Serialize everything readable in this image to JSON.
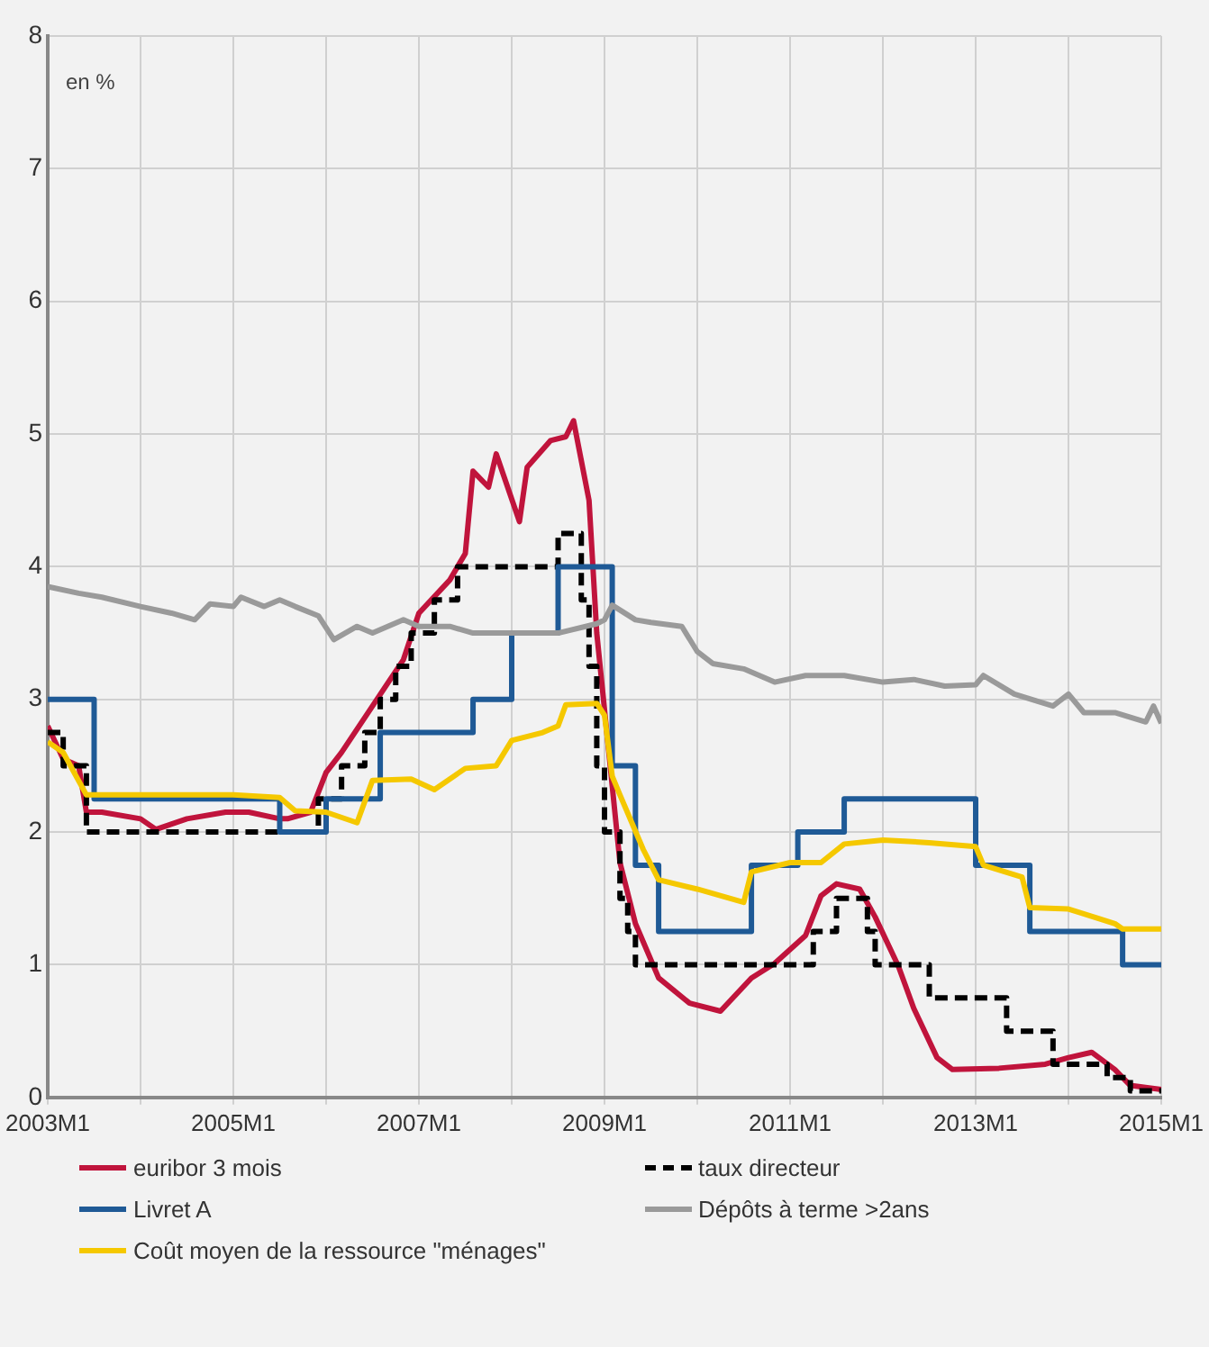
{
  "chart_data": {
    "type": "line",
    "annotations": [
      "en %"
    ],
    "xlim": [
      "2003-01",
      "2015-01"
    ],
    "xticks": [
      {
        "value": "2003-01",
        "label": "2003M1"
      },
      {
        "value": "2004-01",
        "label": null
      },
      {
        "value": "2005-01",
        "label": "2005M1"
      },
      {
        "value": "2006-01",
        "label": null
      },
      {
        "value": "2007-01",
        "label": "2007M1"
      },
      {
        "value": "2008-01",
        "label": null
      },
      {
        "value": "2009-01",
        "label": "2009M1"
      },
      {
        "value": "2010-01",
        "label": null
      },
      {
        "value": "2011-01",
        "label": "2011M1"
      },
      {
        "value": "2012-01",
        "label": null
      },
      {
        "value": "2013-01",
        "label": "2013M1"
      },
      {
        "value": "2014-01",
        "label": null
      },
      {
        "value": "2015-01",
        "label": "2015M1"
      }
    ],
    "ylim": [
      0,
      8
    ],
    "yticks": [
      0,
      1,
      2,
      3,
      4,
      5,
      6,
      7,
      8
    ],
    "grid": true,
    "legend": "bottom",
    "marker": "none",
    "line_style": "solid",
    "series": [
      {
        "name": "euribor 3 mois",
        "color": "#c0143c",
        "x": [
          "2003-01",
          "2003-03",
          "2003-05",
          "2003-06",
          "2003-08",
          "2004-01",
          "2004-03",
          "2004-07",
          "2004-12",
          "2005-03",
          "2005-07",
          "2005-08",
          "2005-11",
          "2006-01",
          "2006-03",
          "2006-07",
          "2006-11",
          "2007-01",
          "2007-05",
          "2007-07",
          "2007-08",
          "2007-10",
          "2007-11",
          "2008-02",
          "2008-03",
          "2008-06",
          "2008-08",
          "2008-09",
          "2008-11",
          "2008-12",
          "2009-03",
          "2009-05",
          "2009-08",
          "2009-12",
          "2010-04",
          "2010-08",
          "2010-11",
          "2011-03",
          "2011-05",
          "2011-07",
          "2011-10",
          "2011-12",
          "2012-03",
          "2012-05",
          "2012-08",
          "2012-10",
          "2013-04",
          "2013-10",
          "2014-01",
          "2014-04",
          "2014-07",
          "2014-09",
          "2015-01"
        ],
        "values": [
          2.8,
          2.55,
          2.5,
          2.15,
          2.15,
          2.1,
          2.02,
          2.1,
          2.15,
          2.15,
          2.1,
          2.1,
          2.15,
          2.45,
          2.6,
          2.95,
          3.3,
          3.65,
          3.9,
          4.1,
          4.72,
          4.6,
          4.85,
          4.34,
          4.75,
          4.95,
          4.98,
          5.1,
          4.5,
          3.5,
          1.77,
          1.31,
          0.9,
          0.71,
          0.65,
          0.9,
          1.01,
          1.22,
          1.52,
          1.61,
          1.57,
          1.36,
          0.99,
          0.67,
          0.3,
          0.21,
          0.22,
          0.25,
          0.3,
          0.34,
          0.21,
          0.09,
          0.06
        ]
      },
      {
        "name": "taux directeur",
        "color": "#000000",
        "type": "step",
        "line_style": "dashed",
        "x": [
          "2003-01",
          "2003-03",
          "2003-06",
          "2005-12",
          "2006-03",
          "2006-06",
          "2006-08",
          "2006-10",
          "2006-12",
          "2007-03",
          "2007-06",
          "2008-07",
          "2008-10",
          "2008-11",
          "2008-12",
          "2009-01",
          "2009-03",
          "2009-04",
          "2009-05",
          "2011-04",
          "2011-07",
          "2011-11",
          "2011-12",
          "2012-07",
          "2013-05",
          "2013-11",
          "2014-06",
          "2014-09",
          "2015-01"
        ],
        "values": [
          2.75,
          2.5,
          2.0,
          2.25,
          2.5,
          2.75,
          3.0,
          3.25,
          3.5,
          3.75,
          4.0,
          4.25,
          3.75,
          3.25,
          2.5,
          2.0,
          1.5,
          1.25,
          1.0,
          1.25,
          1.5,
          1.25,
          1.0,
          0.75,
          0.5,
          0.25,
          0.15,
          0.05,
          0.05
        ]
      },
      {
        "name": "Livret A",
        "color": "#1f5a96",
        "type": "step",
        "x": [
          "2003-01",
          "2003-07",
          "2005-07",
          "2006-01",
          "2006-08",
          "2007-08",
          "2008-01",
          "2008-07",
          "2009-02",
          "2009-05",
          "2009-08",
          "2010-08",
          "2011-02",
          "2011-08",
          "2013-01",
          "2013-08",
          "2014-08",
          "2015-01"
        ],
        "values": [
          3.0,
          2.25,
          2.0,
          2.25,
          2.75,
          3.0,
          3.5,
          4.0,
          2.5,
          1.75,
          1.25,
          1.75,
          2.0,
          2.25,
          1.75,
          1.25,
          1.0,
          1.0
        ]
      },
      {
        "name": "Dépôts à terme >2ans",
        "color": "#9a9a9a",
        "x": [
          "2003-01",
          "2003-05",
          "2003-08",
          "2004-01",
          "2004-05",
          "2004-08",
          "2004-10",
          "2005-01",
          "2005-02",
          "2005-05",
          "2005-07",
          "2005-09",
          "2005-12",
          "2006-02",
          "2006-05",
          "2006-07",
          "2006-11",
          "2007-01",
          "2007-05",
          "2007-08",
          "2008-01",
          "2008-07",
          "2008-12",
          "2009-01",
          "2009-02",
          "2009-05",
          "2009-07",
          "2009-11",
          "2010-01",
          "2010-03",
          "2010-07",
          "2010-11",
          "2011-03",
          "2011-08",
          "2012-01",
          "2012-05",
          "2012-09",
          "2013-01",
          "2013-02",
          "2013-06",
          "2013-11",
          "2014-01",
          "2014-03",
          "2014-07",
          "2014-11",
          "2014-12",
          "2015-01"
        ],
        "values": [
          3.85,
          3.8,
          3.77,
          3.7,
          3.65,
          3.6,
          3.72,
          3.7,
          3.77,
          3.7,
          3.75,
          3.7,
          3.63,
          3.45,
          3.55,
          3.5,
          3.6,
          3.55,
          3.55,
          3.5,
          3.5,
          3.5,
          3.57,
          3.6,
          3.71,
          3.6,
          3.58,
          3.55,
          3.36,
          3.27,
          3.23,
          3.13,
          3.18,
          3.18,
          3.13,
          3.15,
          3.1,
          3.11,
          3.18,
          3.04,
          2.95,
          3.04,
          2.9,
          2.9,
          2.83,
          2.95,
          2.82
        ]
      },
      {
        "name": "Coût moyen de la ressource \"ménages\"",
        "color": "#f5c800",
        "x": [
          "2003-01",
          "2003-03",
          "2003-06",
          "2004-01",
          "2005-01",
          "2005-07",
          "2005-09",
          "2006-01",
          "2006-05",
          "2006-07",
          "2006-12",
          "2007-03",
          "2007-07",
          "2007-11",
          "2008-01",
          "2008-05",
          "2008-07",
          "2008-08",
          "2008-12",
          "2009-01",
          "2009-02",
          "2009-03",
          "2009-06",
          "2009-08",
          "2010-01",
          "2010-07",
          "2010-08",
          "2011-01",
          "2011-05",
          "2011-08",
          "2012-01",
          "2012-07",
          "2013-01",
          "2013-02",
          "2013-07",
          "2013-08",
          "2014-01",
          "2014-07",
          "2014-08",
          "2015-01"
        ],
        "values": [
          2.68,
          2.6,
          2.28,
          2.28,
          2.28,
          2.26,
          2.16,
          2.15,
          2.07,
          2.39,
          2.4,
          2.32,
          2.48,
          2.5,
          2.69,
          2.75,
          2.8,
          2.96,
          2.97,
          2.88,
          2.42,
          2.28,
          1.87,
          1.64,
          1.57,
          1.47,
          1.7,
          1.77,
          1.77,
          1.91,
          1.94,
          1.92,
          1.89,
          1.75,
          1.66,
          1.43,
          1.42,
          1.31,
          1.27,
          1.27
        ]
      }
    ]
  }
}
